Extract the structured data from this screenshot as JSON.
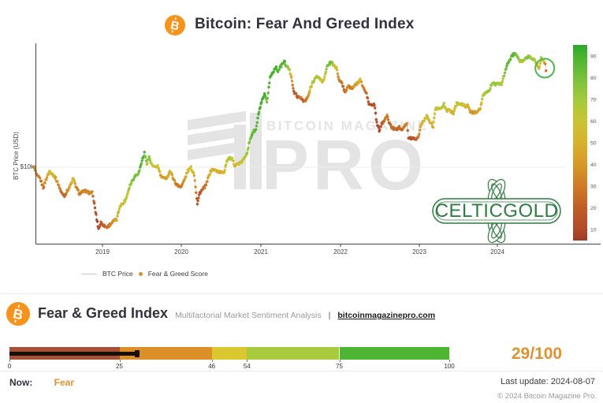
{
  "header": {
    "title": "Bitcoin: Fear And Greed Index"
  },
  "chart": {
    "y_axis_label": "BTC Price (USD)",
    "y_tick": "$10k",
    "x_ticks": [
      "2019",
      "2020",
      "2021",
      "2022",
      "2023",
      "2024"
    ],
    "colorbar_ticks": [
      "90",
      "80",
      "70",
      "60",
      "50",
      "40",
      "30",
      "20",
      "10"
    ],
    "legend": {
      "line_label": "BTC Price",
      "dot_label": "Fear & Greed Score"
    },
    "watermark": {
      "line1": "BITCOIN MAGAZINE",
      "line2": "PRO",
      "reg": "®"
    },
    "sponsor_logo": "CELTICGOLD"
  },
  "chart_data": {
    "type": "scatter",
    "title": "Bitcoin: Fear And Greed Index",
    "xlabel": "",
    "ylabel": "BTC Price (USD)",
    "y_scale": "log",
    "x_range": [
      2018.13,
      2024.62
    ],
    "y_gridline_price": 10000,
    "legend_position": "bottom-left",
    "series_info": [
      {
        "name": "BTC Price",
        "style": "line",
        "color": "#cfcfcf"
      },
      {
        "name": "Fear & Greed Score",
        "style": "colored-scatter",
        "color_by": "fgi"
      }
    ],
    "color_stops": [
      [
        0,
        "#9c3b24"
      ],
      [
        10,
        "#b04a2a"
      ],
      [
        20,
        "#c05d28"
      ],
      [
        30,
        "#cf7b26"
      ],
      [
        40,
        "#d69829"
      ],
      [
        50,
        "#d8b22c"
      ],
      [
        60,
        "#c9c433"
      ],
      [
        70,
        "#a4ca3c"
      ],
      [
        80,
        "#77c13b"
      ],
      [
        90,
        "#48b22f"
      ],
      [
        100,
        "#2fa82b"
      ]
    ],
    "colorbar": {
      "min": 5,
      "max": 95,
      "ticks": [
        90,
        80,
        70,
        60,
        50,
        40,
        30,
        20,
        10
      ]
    },
    "annotation": {
      "year": 2024.595,
      "price": 56500,
      "radius": 12,
      "color": "#4db84f",
      "label": "current-fear-highlight"
    },
    "points": [
      [
        2018.13,
        10300,
        35
      ],
      [
        2018.17,
        8600,
        28
      ],
      [
        2018.21,
        8200,
        30
      ],
      [
        2018.25,
        7000,
        25
      ],
      [
        2018.29,
        8200,
        40
      ],
      [
        2018.33,
        9300,
        55
      ],
      [
        2018.36,
        9000,
        50
      ],
      [
        2018.4,
        8400,
        45
      ],
      [
        2018.44,
        7500,
        35
      ],
      [
        2018.48,
        6400,
        25
      ],
      [
        2018.52,
        6100,
        22
      ],
      [
        2018.56,
        6700,
        35
      ],
      [
        2018.6,
        7400,
        45
      ],
      [
        2018.63,
        8200,
        55
      ],
      [
        2018.67,
        7000,
        35
      ],
      [
        2018.71,
        6300,
        28
      ],
      [
        2018.75,
        6500,
        32
      ],
      [
        2018.79,
        6600,
        35
      ],
      [
        2018.83,
        6400,
        33
      ],
      [
        2018.87,
        6400,
        32
      ],
      [
        2018.89,
        5600,
        18
      ],
      [
        2018.92,
        4300,
        10
      ],
      [
        2018.95,
        3400,
        8
      ],
      [
        2018.98,
        3800,
        18
      ],
      [
        2019.02,
        3600,
        22
      ],
      [
        2019.06,
        3500,
        25
      ],
      [
        2019.1,
        3700,
        32
      ],
      [
        2019.14,
        3900,
        38
      ],
      [
        2019.18,
        4000,
        42
      ],
      [
        2019.22,
        5100,
        55
      ],
      [
        2019.26,
        5300,
        58
      ],
      [
        2019.3,
        5800,
        65
      ],
      [
        2019.34,
        7100,
        72
      ],
      [
        2019.38,
        8000,
        78
      ],
      [
        2019.42,
        8700,
        80
      ],
      [
        2019.46,
        9100,
        82
      ],
      [
        2019.5,
        11200,
        90
      ],
      [
        2019.53,
        12800,
        86
      ],
      [
        2019.56,
        10700,
        70
      ],
      [
        2019.59,
        11900,
        76
      ],
      [
        2019.62,
        10500,
        62
      ],
      [
        2019.66,
        9900,
        58
      ],
      [
        2019.7,
        10200,
        60
      ],
      [
        2019.74,
        8500,
        42
      ],
      [
        2019.78,
        8200,
        40
      ],
      [
        2019.82,
        8400,
        45
      ],
      [
        2019.85,
        9300,
        52
      ],
      [
        2019.88,
        8700,
        45
      ],
      [
        2019.92,
        7600,
        32
      ],
      [
        2019.96,
        7200,
        30
      ],
      [
        2020.0,
        7200,
        32
      ],
      [
        2020.04,
        8100,
        42
      ],
      [
        2020.08,
        9400,
        55
      ],
      [
        2020.12,
        9900,
        58
      ],
      [
        2020.16,
        8800,
        48
      ],
      [
        2020.2,
        5300,
        10
      ],
      [
        2020.23,
        6400,
        18
      ],
      [
        2020.27,
        6800,
        22
      ],
      [
        2020.31,
        7300,
        30
      ],
      [
        2020.35,
        8800,
        45
      ],
      [
        2020.38,
        9600,
        52
      ],
      [
        2020.42,
        9500,
        52
      ],
      [
        2020.46,
        9300,
        50
      ],
      [
        2020.5,
        9100,
        48
      ],
      [
        2020.54,
        9200,
        50
      ],
      [
        2020.57,
        11100,
        62
      ],
      [
        2020.6,
        11700,
        66
      ],
      [
        2020.64,
        11500,
        63
      ],
      [
        2020.67,
        10400,
        54
      ],
      [
        2020.71,
        10600,
        56
      ],
      [
        2020.75,
        10800,
        58
      ],
      [
        2020.79,
        11500,
        62
      ],
      [
        2020.83,
        13100,
        72
      ],
      [
        2020.86,
        15600,
        80
      ],
      [
        2020.9,
        18400,
        86
      ],
      [
        2020.94,
        19200,
        88
      ],
      [
        2020.98,
        26500,
        92
      ],
      [
        2021.02,
        32000,
        93
      ],
      [
        2021.05,
        35500,
        91
      ],
      [
        2021.08,
        31000,
        82
      ],
      [
        2021.12,
        48000,
        91
      ],
      [
        2021.15,
        52000,
        92
      ],
      [
        2021.19,
        57500,
        92
      ],
      [
        2021.22,
        54000,
        86
      ],
      [
        2021.26,
        58900,
        88
      ],
      [
        2021.3,
        63500,
        90
      ],
      [
        2021.33,
        58000,
        76
      ],
      [
        2021.36,
        55800,
        70
      ],
      [
        2021.39,
        49000,
        45
      ],
      [
        2021.42,
        37000,
        20
      ],
      [
        2021.45,
        35600,
        18
      ],
      [
        2021.48,
        33500,
        20
      ],
      [
        2021.51,
        34200,
        28
      ],
      [
        2021.54,
        31500,
        18
      ],
      [
        2021.57,
        32100,
        24
      ],
      [
        2021.6,
        34200,
        35
      ],
      [
        2021.63,
        39500,
        52
      ],
      [
        2021.66,
        44500,
        66
      ],
      [
        2021.69,
        47100,
        70
      ],
      [
        2021.72,
        48800,
        72
      ],
      [
        2021.75,
        47000,
        66
      ],
      [
        2021.78,
        44600,
        55
      ],
      [
        2021.81,
        48100,
        62
      ],
      [
        2021.84,
        57400,
        76
      ],
      [
        2021.87,
        61500,
        80
      ],
      [
        2021.9,
        63300,
        81
      ],
      [
        2021.93,
        58000,
        60
      ],
      [
        2021.96,
        57300,
        56
      ],
      [
        2021.99,
        46300,
        28
      ],
      [
        2022.03,
        43100,
        26
      ],
      [
        2022.07,
        36900,
        21
      ],
      [
        2022.11,
        42400,
        36
      ],
      [
        2022.14,
        39100,
        30
      ],
      [
        2022.18,
        41100,
        38
      ],
      [
        2022.22,
        43200,
        45
      ],
      [
        2022.26,
        46300,
        52
      ],
      [
        2022.3,
        40000,
        32
      ],
      [
        2022.34,
        36000,
        26
      ],
      [
        2022.37,
        30100,
        12
      ],
      [
        2022.41,
        29500,
        10
      ],
      [
        2022.44,
        29900,
        14
      ],
      [
        2022.47,
        21600,
        8
      ],
      [
        2022.5,
        19000,
        9
      ],
      [
        2022.53,
        21200,
        16
      ],
      [
        2022.57,
        23300,
        26
      ],
      [
        2022.6,
        24400,
        32
      ],
      [
        2022.63,
        21500,
        20
      ],
      [
        2022.66,
        20100,
        22
      ],
      [
        2022.7,
        19400,
        23
      ],
      [
        2022.73,
        19600,
        24
      ],
      [
        2022.76,
        20200,
        26
      ],
      [
        2022.79,
        19300,
        23
      ],
      [
        2022.82,
        20800,
        30
      ],
      [
        2022.85,
        21300,
        32
      ],
      [
        2022.87,
        16500,
        10
      ],
      [
        2022.91,
        16700,
        14
      ],
      [
        2022.95,
        16500,
        16
      ],
      [
        2022.99,
        16600,
        26
      ],
      [
        2023.03,
        21100,
        48
      ],
      [
        2023.07,
        23000,
        56
      ],
      [
        2023.11,
        24600,
        62
      ],
      [
        2023.14,
        22100,
        50
      ],
      [
        2023.18,
        20200,
        46
      ],
      [
        2023.21,
        27500,
        60
      ],
      [
        2023.25,
        28400,
        62
      ],
      [
        2023.29,
        28000,
        60
      ],
      [
        2023.32,
        30000,
        66
      ],
      [
        2023.36,
        27000,
        54
      ],
      [
        2023.4,
        26800,
        52
      ],
      [
        2023.44,
        25900,
        48
      ],
      [
        2023.48,
        30600,
        62
      ],
      [
        2023.51,
        30300,
        60
      ],
      [
        2023.55,
        29900,
        57
      ],
      [
        2023.58,
        29200,
        54
      ],
      [
        2023.62,
        29100,
        52
      ],
      [
        2023.66,
        26100,
        40
      ],
      [
        2023.7,
        26000,
        40
      ],
      [
        2023.74,
        26600,
        44
      ],
      [
        2023.78,
        28000,
        50
      ],
      [
        2023.81,
        34200,
        66
      ],
      [
        2023.85,
        37100,
        70
      ],
      [
        2023.89,
        37800,
        71
      ],
      [
        2023.93,
        43900,
        74
      ],
      [
        2023.97,
        42600,
        72
      ],
      [
        2024.01,
        42800,
        70
      ],
      [
        2024.05,
        43100,
        68
      ],
      [
        2024.09,
        52000,
        79
      ],
      [
        2024.13,
        62500,
        83
      ],
      [
        2024.17,
        68300,
        86
      ],
      [
        2024.21,
        73000,
        88
      ],
      [
        2024.24,
        69400,
        80
      ],
      [
        2024.28,
        64100,
        72
      ],
      [
        2024.31,
        63900,
        70
      ],
      [
        2024.35,
        66900,
        74
      ],
      [
        2024.39,
        69100,
        76
      ],
      [
        2024.42,
        67800,
        73
      ],
      [
        2024.46,
        66000,
        70
      ],
      [
        2024.49,
        61000,
        54
      ],
      [
        2024.52,
        57000,
        44
      ],
      [
        2024.55,
        66500,
        70
      ],
      [
        2024.58,
        64600,
        55
      ],
      [
        2024.6,
        60700,
        35
      ],
      [
        2024.61,
        54000,
        26
      ]
    ]
  },
  "footer": {
    "title": "Fear & Greed Index",
    "subtitle": "Multifactorial Market Sentiment Analysis",
    "separator": "|",
    "link": "bitcoinmagazinepro.com",
    "scale": {
      "min": 0,
      "max": 100,
      "ticks": [
        0,
        25,
        46,
        54,
        75,
        100
      ],
      "segments": [
        {
          "from": 0,
          "to": 25,
          "color": "#a65137"
        },
        {
          "from": 25,
          "to": 46,
          "color": "#dc8e29"
        },
        {
          "from": 46,
          "to": 54,
          "color": "#dbc72f"
        },
        {
          "from": 54,
          "to": 75,
          "color": "#a9ca3d"
        },
        {
          "from": 75,
          "to": 100,
          "color": "#4db531"
        }
      ],
      "value": 29,
      "indicator_color": "#171008"
    },
    "score_display": "29/100",
    "now_label": "Now:",
    "now_value": "Fear",
    "last_update": "Last update: 2024-08-07",
    "copyright": "© 2024 Bitcoin Magazine Pro."
  },
  "colors": {
    "accent_orange": "#e0912f",
    "btc_logo": "#f7931a",
    "sponsor_green": "#2f7d44",
    "watermark_gray": "#e4e4e4"
  }
}
